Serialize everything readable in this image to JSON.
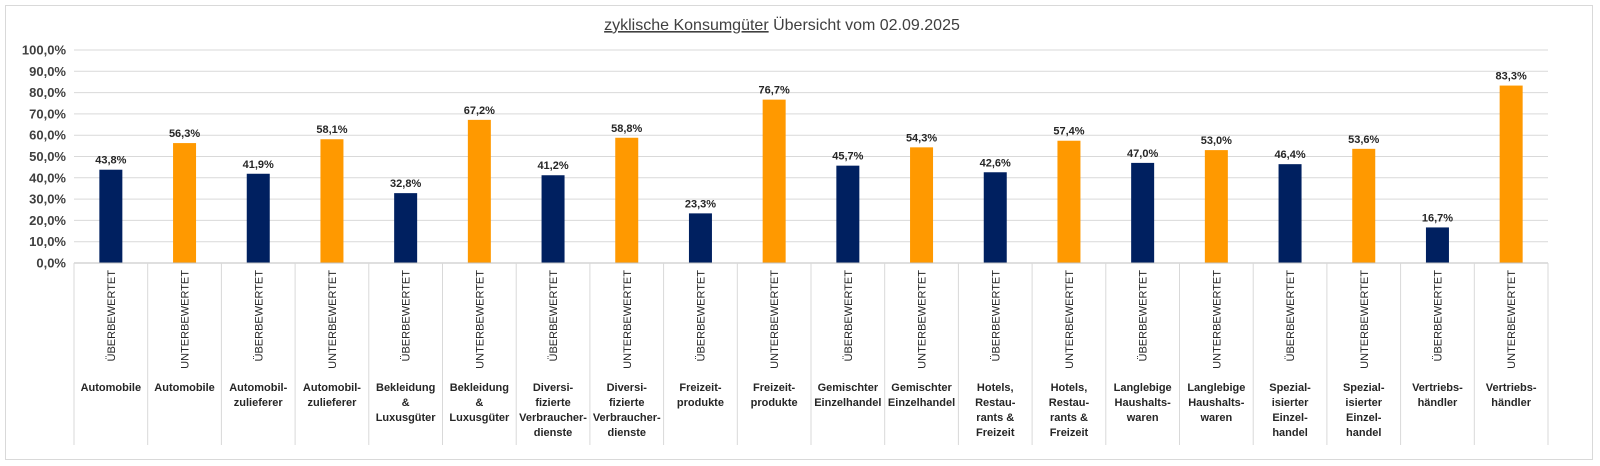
{
  "chart_data": {
    "type": "bar",
    "title_underlined": "zyklische Konsumgüter",
    "title_rest": " Übersicht vom 02.09.2025",
    "ylim": [
      0,
      100
    ],
    "yticks": [
      "0,0%",
      "10,0%",
      "20,0%",
      "30,0%",
      "40,0%",
      "50,0%",
      "60,0%",
      "70,0%",
      "80,0%",
      "90,0%",
      "100,0%"
    ],
    "gridlines": true,
    "colors": {
      "ÜBERBEWERTET": "#002060",
      "UNTERBEWERTET": "#FF9900"
    },
    "categories": [
      {
        "valuation": "ÜBERBEWERTET",
        "sector": [
          "Automobile"
        ],
        "value": 43.8,
        "label": "43,8%"
      },
      {
        "valuation": "UNTERBEWERTET",
        "sector": [
          "Automobile"
        ],
        "value": 56.3,
        "label": "56,3%"
      },
      {
        "valuation": "ÜBERBEWERTET",
        "sector": [
          "Automobil-",
          "zulieferer"
        ],
        "value": 41.9,
        "label": "41,9%"
      },
      {
        "valuation": "UNTERBEWERTET",
        "sector": [
          "Automobil-",
          "zulieferer"
        ],
        "value": 58.1,
        "label": "58,1%"
      },
      {
        "valuation": "ÜBERBEWERTET",
        "sector": [
          "Bekleidung",
          "&",
          "Luxusgüter"
        ],
        "value": 32.8,
        "label": "32,8%"
      },
      {
        "valuation": "UNTERBEWERTET",
        "sector": [
          "Bekleidung",
          "&",
          "Luxusgüter"
        ],
        "value": 67.2,
        "label": "67,2%"
      },
      {
        "valuation": "ÜBERBEWERTET",
        "sector": [
          "Diversi-",
          "fizierte",
          "Verbraucher-",
          "dienste"
        ],
        "value": 41.2,
        "label": "41,2%"
      },
      {
        "valuation": "UNTERBEWERTET",
        "sector": [
          "Diversi-",
          "fizierte",
          "Verbraucher-",
          "dienste"
        ],
        "value": 58.8,
        "label": "58,8%"
      },
      {
        "valuation": "ÜBERBEWERTET",
        "sector": [
          "Freizeit-",
          "produkte"
        ],
        "value": 23.3,
        "label": "23,3%"
      },
      {
        "valuation": "UNTERBEWERTET",
        "sector": [
          "Freizeit-",
          "produkte"
        ],
        "value": 76.7,
        "label": "76,7%"
      },
      {
        "valuation": "ÜBERBEWERTET",
        "sector": [
          "Gemischter",
          "Einzelhandel"
        ],
        "value": 45.7,
        "label": "45,7%"
      },
      {
        "valuation": "UNTERBEWERTET",
        "sector": [
          "Gemischter",
          "Einzelhandel"
        ],
        "value": 54.3,
        "label": "54,3%"
      },
      {
        "valuation": "ÜBERBEWERTET",
        "sector": [
          "Hotels,",
          "Restau-",
          "rants &",
          "Freizeit"
        ],
        "value": 42.6,
        "label": "42,6%"
      },
      {
        "valuation": "UNTERBEWERTET",
        "sector": [
          "Hotels,",
          "Restau-",
          "rants &",
          "Freizeit"
        ],
        "value": 57.4,
        "label": "57,4%"
      },
      {
        "valuation": "ÜBERBEWERTET",
        "sector": [
          "Langlebige",
          "Haushalts-",
          "waren"
        ],
        "value": 47.0,
        "label": "47,0%"
      },
      {
        "valuation": "UNTERBEWERTET",
        "sector": [
          "Langlebige",
          "Haushalts-",
          "waren"
        ],
        "value": 53.0,
        "label": "53,0%"
      },
      {
        "valuation": "ÜBERBEWERTET",
        "sector": [
          "Spezial-",
          "isierter",
          "Einzel-",
          "handel"
        ],
        "value": 46.4,
        "label": "46,4%"
      },
      {
        "valuation": "UNTERBEWERTET",
        "sector": [
          "Spezial-",
          "isierter",
          "Einzel-",
          "handel"
        ],
        "value": 53.6,
        "label": "53,6%"
      },
      {
        "valuation": "ÜBERBEWERTET",
        "sector": [
          "Vertriebs-",
          "händler"
        ],
        "value": 16.7,
        "label": "16,7%"
      },
      {
        "valuation": "UNTERBEWERTET",
        "sector": [
          "Vertriebs-",
          "händler"
        ],
        "value": 83.3,
        "label": "83,3%"
      }
    ]
  }
}
